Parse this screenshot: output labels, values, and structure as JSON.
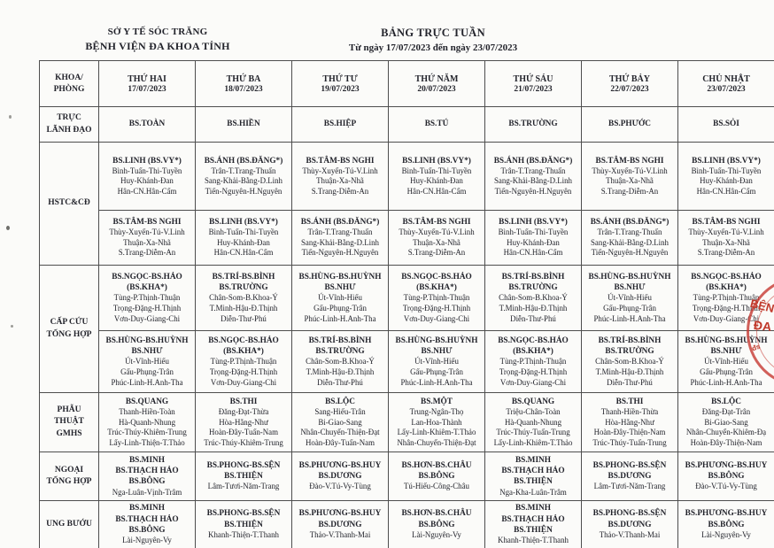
{
  "header": {
    "department": "SỞ Y TẾ SÓC TRĂNG",
    "hospital": "BỆNH VIỆN ĐA KHOA TỈNH",
    "title": "BẢNG TRỰC TUẦN",
    "date_range": "Từ ngày 17/07/2023 đến ngày 23/07/2023"
  },
  "colors": {
    "ink": "#23242c",
    "border": "#4e4e4e",
    "stamp_red": "#c0392b",
    "paper": "#fbfbf9"
  },
  "stamp": {
    "fragments": [
      "BỆN",
      "ĐA",
      "đs"
    ]
  },
  "schedule": {
    "corner_lines": [
      "KHOA/",
      "PHÒNG"
    ],
    "days": [
      {
        "name": "THỨ HAI",
        "date": "17/07/2023"
      },
      {
        "name": "THỨ BA",
        "date": "18/07/2023"
      },
      {
        "name": "THỨ TƯ",
        "date": "19/07/2023"
      },
      {
        "name": "THỨ NĂM",
        "date": "20/07/2023"
      },
      {
        "name": "THỨ SÁU",
        "date": "21/07/2023"
      },
      {
        "name": "THỨ BẢY",
        "date": "22/07/2023"
      },
      {
        "name": "CHỦ NHẬT",
        "date": "23/07/2023"
      }
    ],
    "rows": [
      {
        "id": "truc-lanh-dao",
        "label_lines": [
          "TRỰC",
          "LÃNH ĐẠO"
        ],
        "subrows": [
          [
            {
              "d": [
                "BS.TOÀN"
              ],
              "s": []
            },
            {
              "d": [
                "BS.HIỀN"
              ],
              "s": []
            },
            {
              "d": [
                "BS.HIỆP"
              ],
              "s": []
            },
            {
              "d": [
                "BS.TÚ"
              ],
              "s": []
            },
            {
              "d": [
                "BS.TRƯỜNG"
              ],
              "s": []
            },
            {
              "d": [
                "BS.PHƯỚC"
              ],
              "s": []
            },
            {
              "d": [
                "BS.SỎI"
              ],
              "s": []
            }
          ]
        ]
      },
      {
        "id": "hstc-cd",
        "label_lines": [
          "HSTC&CĐ"
        ],
        "subrows": [
          [
            {
              "d": [
                "BS.LINH (BS.VY*)"
              ],
              "s": [
                "Bình-Tuấn-Thi-Tuyền",
                "Huy-Khánh-Đan",
                "Hân-CN.Hân-Cẩm"
              ]
            },
            {
              "d": [
                "BS.ÁNH (BS.ĐĂNG*)"
              ],
              "s": [
                "Trân-T.Trang-Thuấn",
                "Sang-Khải-Bằng-D.Linh",
                "Tiến-Nguyên-H.Nguyên"
              ]
            },
            {
              "d": [
                "BS.TÂM-BS NGHI"
              ],
              "s": [
                "Thùy-Xuyến-Tú-V.Linh",
                "Thuận-Xa-Nhã",
                "S.Trang-Diễm-An"
              ]
            },
            {
              "d": [
                "BS.LINH (BS.VY*)"
              ],
              "s": [
                "Bình-Tuấn-Thi-Tuyền",
                "Huy-Khánh-Đan",
                "Hân-CN.Hân-Cẩm"
              ]
            },
            {
              "d": [
                "BS.ÁNH (BS.ĐĂNG*)"
              ],
              "s": [
                "Trân-T.Trang-Thuấn",
                "Sang-Khải-Bằng-D.Linh",
                "Tiến-Nguyên-H.Nguyên"
              ]
            },
            {
              "d": [
                "BS.TÂM-BS NGHI"
              ],
              "s": [
                "Thùy-Xuyến-Tú-V.Linh",
                "Thuận-Xa-Nhã",
                "S.Trang-Diễm-An"
              ]
            },
            {
              "d": [
                "BS.LINH (BS.VY*)"
              ],
              "s": [
                "Bình-Tuấn-Thi-Tuyền",
                "Huy-Khánh-Đan",
                "Hân-CN.Hân-Cẩm"
              ]
            }
          ],
          [
            {
              "d": [
                "BS.TÂM-BS NGHI"
              ],
              "s": [
                "Thùy-Xuyến-Tú-V.Linh",
                "Thuận-Xa-Nhã",
                "S.Trang-Diễm-An"
              ]
            },
            {
              "d": [
                "BS.LINH (BS.VY*)"
              ],
              "s": [
                "Bình-Tuấn-Thi-Tuyền",
                "Huy-Khánh-Đan",
                "Hân-CN.Hân-Cẩm"
              ]
            },
            {
              "d": [
                "BS.ÁNH (BS.ĐĂNG*)"
              ],
              "s": [
                "Trân-T.Trang-Thuấn",
                "Sang-Khải-Bằng-D.Linh",
                "Tiến-Nguyên-H.Nguyên"
              ]
            },
            {
              "d": [
                "BS.TÂM-BS NGHI"
              ],
              "s": [
                "Thùy-Xuyến-Tú-V.Linh",
                "Thuận-Xa-Nhã",
                "S.Trang-Diễm-An"
              ]
            },
            {
              "d": [
                "BS.LINH (BS.VY*)"
              ],
              "s": [
                "Bình-Tuấn-Thi-Tuyền",
                "Huy-Khánh-Đan",
                "Hân-CN.Hân-Cẩm"
              ]
            },
            {
              "d": [
                "BS.ÁNH (BS.ĐĂNG*)"
              ],
              "s": [
                "Trân-T.Trang-Thuấn",
                "Sang-Khải-Bằng-D.Linh",
                "Tiến-Nguyên-H.Nguyên"
              ]
            },
            {
              "d": [
                "BS.TÂM-BS NGHI"
              ],
              "s": [
                "Thùy-Xuyến-Tú-V.Linh",
                "Thuận-Xa-Nhã",
                "S.Trang-Diễm-An"
              ]
            }
          ]
        ]
      },
      {
        "id": "cap-cuu-tong-hop",
        "label_lines": [
          "CẤP CỨU",
          "TỔNG HỢP"
        ],
        "subrows": [
          [
            {
              "d": [
                "BS.NGỌC-BS.HẢO",
                "(BS.KHA*)"
              ],
              "s": [
                "Tùng-P.Thịnh-Thuận",
                "Trọng-Đặng-H.Thịnh",
                "Vơn-Duy-Giang-Chi"
              ]
            },
            {
              "d": [
                "BS.TRÍ-BS.BÌNH",
                "BS.TRƯỜNG"
              ],
              "s": [
                "Chân-Som-B.Khoa-Ý",
                "T.Minh-Hậu-Đ.Thịnh",
                "Diễn-Thư-Phú"
              ]
            },
            {
              "d": [
                "BS.HÙNG-BS.HUỲNH",
                "BS.NHƯ"
              ],
              "s": [
                "Út-Vĩnh-Hiếu",
                "Gấu-Phụng-Trân",
                "Phúc-Linh-H.Anh-Tha"
              ]
            },
            {
              "d": [
                "BS.NGỌC-BS.HẢO",
                "(BS.KHA*)"
              ],
              "s": [
                "Tùng-P.Thịnh-Thuận",
                "Trọng-Đặng-H.Thịnh",
                "Vơn-Duy-Giang-Chi"
              ]
            },
            {
              "d": [
                "BS.TRÍ-BS.BÌNH",
                "BS.TRƯỜNG"
              ],
              "s": [
                "Chân-Som-B.Khoa-Ý",
                "T.Minh-Hậu-Đ.Thịnh",
                "Diễn-Thư-Phú"
              ]
            },
            {
              "d": [
                "BS.HÙNG-BS.HUỲNH",
                "BS.NHƯ"
              ],
              "s": [
                "Út-Vĩnh-Hiếu",
                "Gấu-Phụng-Trân",
                "Phúc-Linh-H.Anh-Tha"
              ]
            },
            {
              "d": [
                "BS.NGỌC-BS.HẢO",
                "(BS.KHA*)"
              ],
              "s": [
                "Tùng-P.Thịnh-Thuận",
                "Trọng-Đặng-H.Thịnh",
                "Vơn-Duy-Giang-Chi"
              ]
            }
          ],
          [
            {
              "d": [
                "BS.HÙNG-BS.HUỲNH",
                "BS.NHƯ"
              ],
              "s": [
                "Út-Vĩnh-Hiếu",
                "Gấu-Phụng-Trân",
                "Phúc-Linh-H.Anh-Tha"
              ]
            },
            {
              "d": [
                "BS.NGỌC-BS.HẢO",
                "(BS.KHA*)"
              ],
              "s": [
                "Tùng-P.Thịnh-Thuận",
                "Trọng-Đặng-H.Thịnh",
                "Vơn-Duy-Giang-Chi"
              ]
            },
            {
              "d": [
                "BS.TRÍ-BS.BÌNH",
                "BS.TRƯỜNG"
              ],
              "s": [
                "Chân-Som-B.Khoa-Ý",
                "T.Minh-Hậu-Đ.Thịnh",
                "Diễn-Thư-Phú"
              ]
            },
            {
              "d": [
                "BS.HÙNG-BS.HUỲNH",
                "BS.NHƯ"
              ],
              "s": [
                "Út-Vĩnh-Hiếu",
                "Gấu-Phụng-Trân",
                "Phúc-Linh-H.Anh-Tha"
              ]
            },
            {
              "d": [
                "BS.NGỌC-BS.HẢO",
                "(BS.KHA*)"
              ],
              "s": [
                "Tùng-P.Thịnh-Thuận",
                "Trọng-Đặng-H.Thịnh",
                "Vơn-Duy-Giang-Chi"
              ]
            },
            {
              "d": [
                "BS.TRÍ-BS.BÌNH",
                "BS.TRƯỜNG"
              ],
              "s": [
                "Chân-Som-B.Khoa-Ý",
                "T.Minh-Hậu-Đ.Thịnh",
                "Diễn-Thư-Phú"
              ]
            },
            {
              "d": [
                "BS.HÙNG-BS.HUỲNH",
                "BS.NHƯ"
              ],
              "s": [
                "Út-Vĩnh-Hiếu",
                "Gấu-Phụng-Trân",
                "Phúc-Linh-H.Anh-Tha"
              ]
            }
          ]
        ]
      },
      {
        "id": "phau-thuat-gmhs",
        "label_lines": [
          "PHẪU",
          "THUẬT",
          "GMHS"
        ],
        "subrows": [
          [
            {
              "d": [
                "BS.QUANG"
              ],
              "s": [
                "Thanh-Hiền-Toàn",
                "Hà-Quanh-Nhung",
                "Trúc-Thúy-Khiêm-Trung",
                "Lẩy-Linh-Thiện-T.Thảo"
              ]
            },
            {
              "d": [
                "BS.THI"
              ],
              "s": [
                "Đăng-Đạt-Thừa",
                "Hòa-Hằng-Như",
                "Hoàn-Đây-Tuấn-Nam",
                "Trúc-Thúy-Khiêm-Trung"
              ]
            },
            {
              "d": [
                "BS.LỘC"
              ],
              "s": [
                "Sang-Hiếu-Trân",
                "Bi-Giao-Sang",
                "Nhân-Chuyển-Thiện-Đạt",
                "Hoàn-Đây-Tuấn-Nam"
              ]
            },
            {
              "d": [
                "BS.MỘT"
              ],
              "s": [
                "Trung-Ngân-Thọ",
                "Lan-Hoa-Thành",
                "Lẩy-Linh-Khiêm-T.Thảo",
                "Nhân-Chuyển-Thiện-Đạt"
              ]
            },
            {
              "d": [
                "BS.QUANG"
              ],
              "s": [
                "Triệu-Chân-Toàn",
                "Hà-Quanh-Nhung",
                "Trúc-Thúy-Tuấn-Trung",
                "Lẩy-Linh-Khiêm-T.Thảo"
              ]
            },
            {
              "d": [
                "BS.THI"
              ],
              "s": [
                "Thanh-Hiền-Thừa",
                "Hòa-Hằng-Như",
                "Hoàn-Đây-Thiện-Nam",
                "Trúc-Thúy-Tuấn-Trung"
              ]
            },
            {
              "d": [
                "BS.LỘC"
              ],
              "s": [
                "Đăng-Đạt-Trân",
                "Bi-Giao-Sang",
                "Nhân-Chuyển-Khiêm-Đạ",
                "Hoàn-Đây-Thiện-Nam"
              ]
            }
          ]
        ]
      },
      {
        "id": "ngoai-tong-hop",
        "label_lines": [
          "NGOẠI",
          "TỔNG HỢP"
        ],
        "subrows": [
          [
            {
              "d": [
                "BS.MINH",
                "BS.THẠCH HẢO",
                "BS.BÔNG"
              ],
              "s": [
                "Nga-Luân-Vịnh-Trâm"
              ]
            },
            {
              "d": [
                "BS.PHONG-BS.SỆN",
                "BS.THIỆN"
              ],
              "s": [
                "Lâm-Tươi-Năm-Trang"
              ]
            },
            {
              "d": [
                "BS.PHƯƠNG-BS.HUY",
                "BS.DƯƠNG"
              ],
              "s": [
                "Đào-V.Tú-Vy-Tùng"
              ]
            },
            {
              "d": [
                "BS.HƠN-BS.CHÂU",
                "BS.BÔNG"
              ],
              "s": [
                "Tú-Hiếu-Công-Châu"
              ]
            },
            {
              "d": [
                "BS.MINH",
                "BS.THẠCH HẢO",
                "BS.THIỆN"
              ],
              "s": [
                "Nga-Kha-Luân-Trâm"
              ]
            },
            {
              "d": [
                "BS.PHONG-BS.SỆN",
                "BS.DƯƠNG"
              ],
              "s": [
                "Lâm-Tươi-Năm-Trang"
              ]
            },
            {
              "d": [
                "BS.PHƯƠNG-BS.HUY",
                "BS.BÔNG"
              ],
              "s": [
                "Đào-V.Tú-Vy-Tùng"
              ]
            }
          ]
        ]
      },
      {
        "id": "ung-buou",
        "label_lines": [
          "UNG BƯỚU"
        ],
        "subrows": [
          [
            {
              "d": [
                "BS.MINH",
                "BS.THẠCH HẢO",
                "BS.BÔNG"
              ],
              "s": [
                "Lài-Nguyên-Vy"
              ]
            },
            {
              "d": [
                "BS.PHONG-BS.SỆN",
                "BS.THIỆN"
              ],
              "s": [
                "Khanh-Thiện-T.Thanh"
              ]
            },
            {
              "d": [
                "BS.PHƯƠNG-BS.HUY",
                "BS.DƯƠNG"
              ],
              "s": [
                "Thảo-V.Thanh-Mai"
              ]
            },
            {
              "d": [
                "BS.HƠN-BS.CHÂU",
                "BS.BÔNG"
              ],
              "s": [
                "Lài-Nguyên-Vy"
              ]
            },
            {
              "d": [
                "BS.MINH",
                "BS.THẠCH HẢO",
                "BS.THIỆN"
              ],
              "s": [
                "Khanh-Thiện-T.Thanh"
              ]
            },
            {
              "d": [
                "BS.PHONG-BS.SỆN",
                "BS.DƯƠNG"
              ],
              "s": [
                "Thảo-V.Thanh-Mai"
              ]
            },
            {
              "d": [
                "BS.PHƯƠNG-BS.HUY",
                "BS.BÔNG"
              ],
              "s": [
                "Lài-Nguyên-Vy"
              ]
            }
          ]
        ]
      }
    ]
  }
}
